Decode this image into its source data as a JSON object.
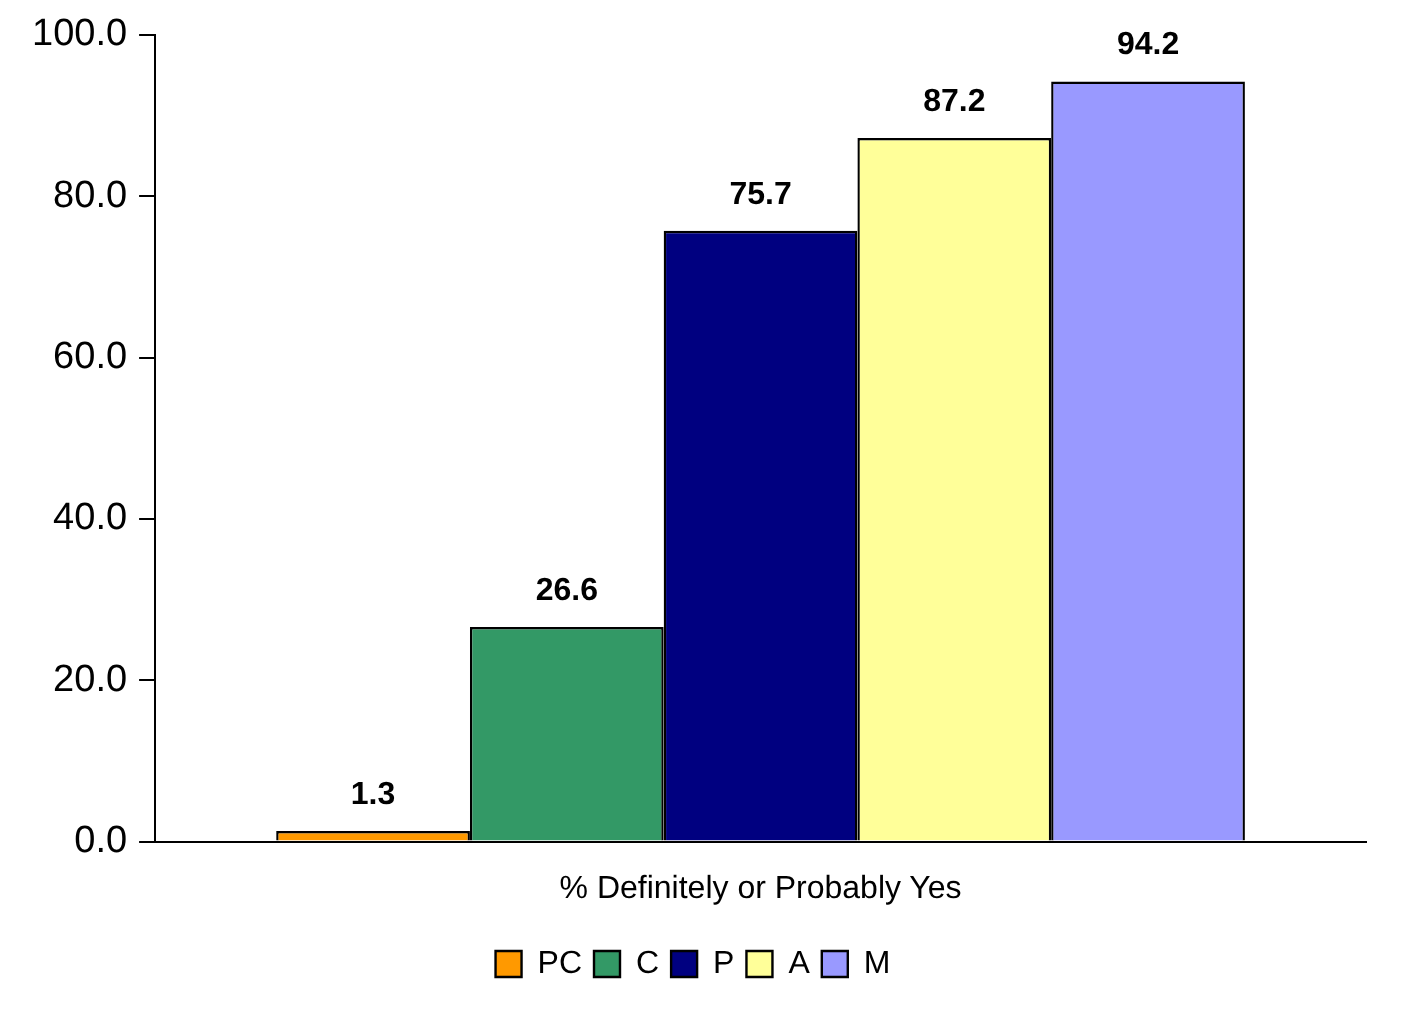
{
  "chart_data": {
    "type": "bar",
    "categories": [
      "% Definitely or Probably Yes"
    ],
    "series": [
      {
        "name": "PC",
        "color": "#ff9900",
        "values": [
          1.3
        ]
      },
      {
        "name": "C",
        "color": "#339966",
        "values": [
          26.6
        ]
      },
      {
        "name": "P",
        "color": "#000080",
        "values": [
          75.7
        ]
      },
      {
        "name": "A",
        "color": "#ffff99",
        "values": [
          87.2
        ]
      },
      {
        "name": "M",
        "color": "#9999ff",
        "values": [
          94.2
        ]
      }
    ],
    "ylim": [
      0,
      100
    ],
    "yticks": [
      {
        "value": 0,
        "label": "0.0"
      },
      {
        "value": 20,
        "label": "20.0"
      },
      {
        "value": 40,
        "label": "40.0"
      },
      {
        "value": 60,
        "label": "60.0"
      },
      {
        "value": 80,
        "label": "80.0"
      },
      {
        "value": 100,
        "label": "100.0"
      }
    ],
    "grid": false,
    "legend": "bottom",
    "data_labels": true
  }
}
